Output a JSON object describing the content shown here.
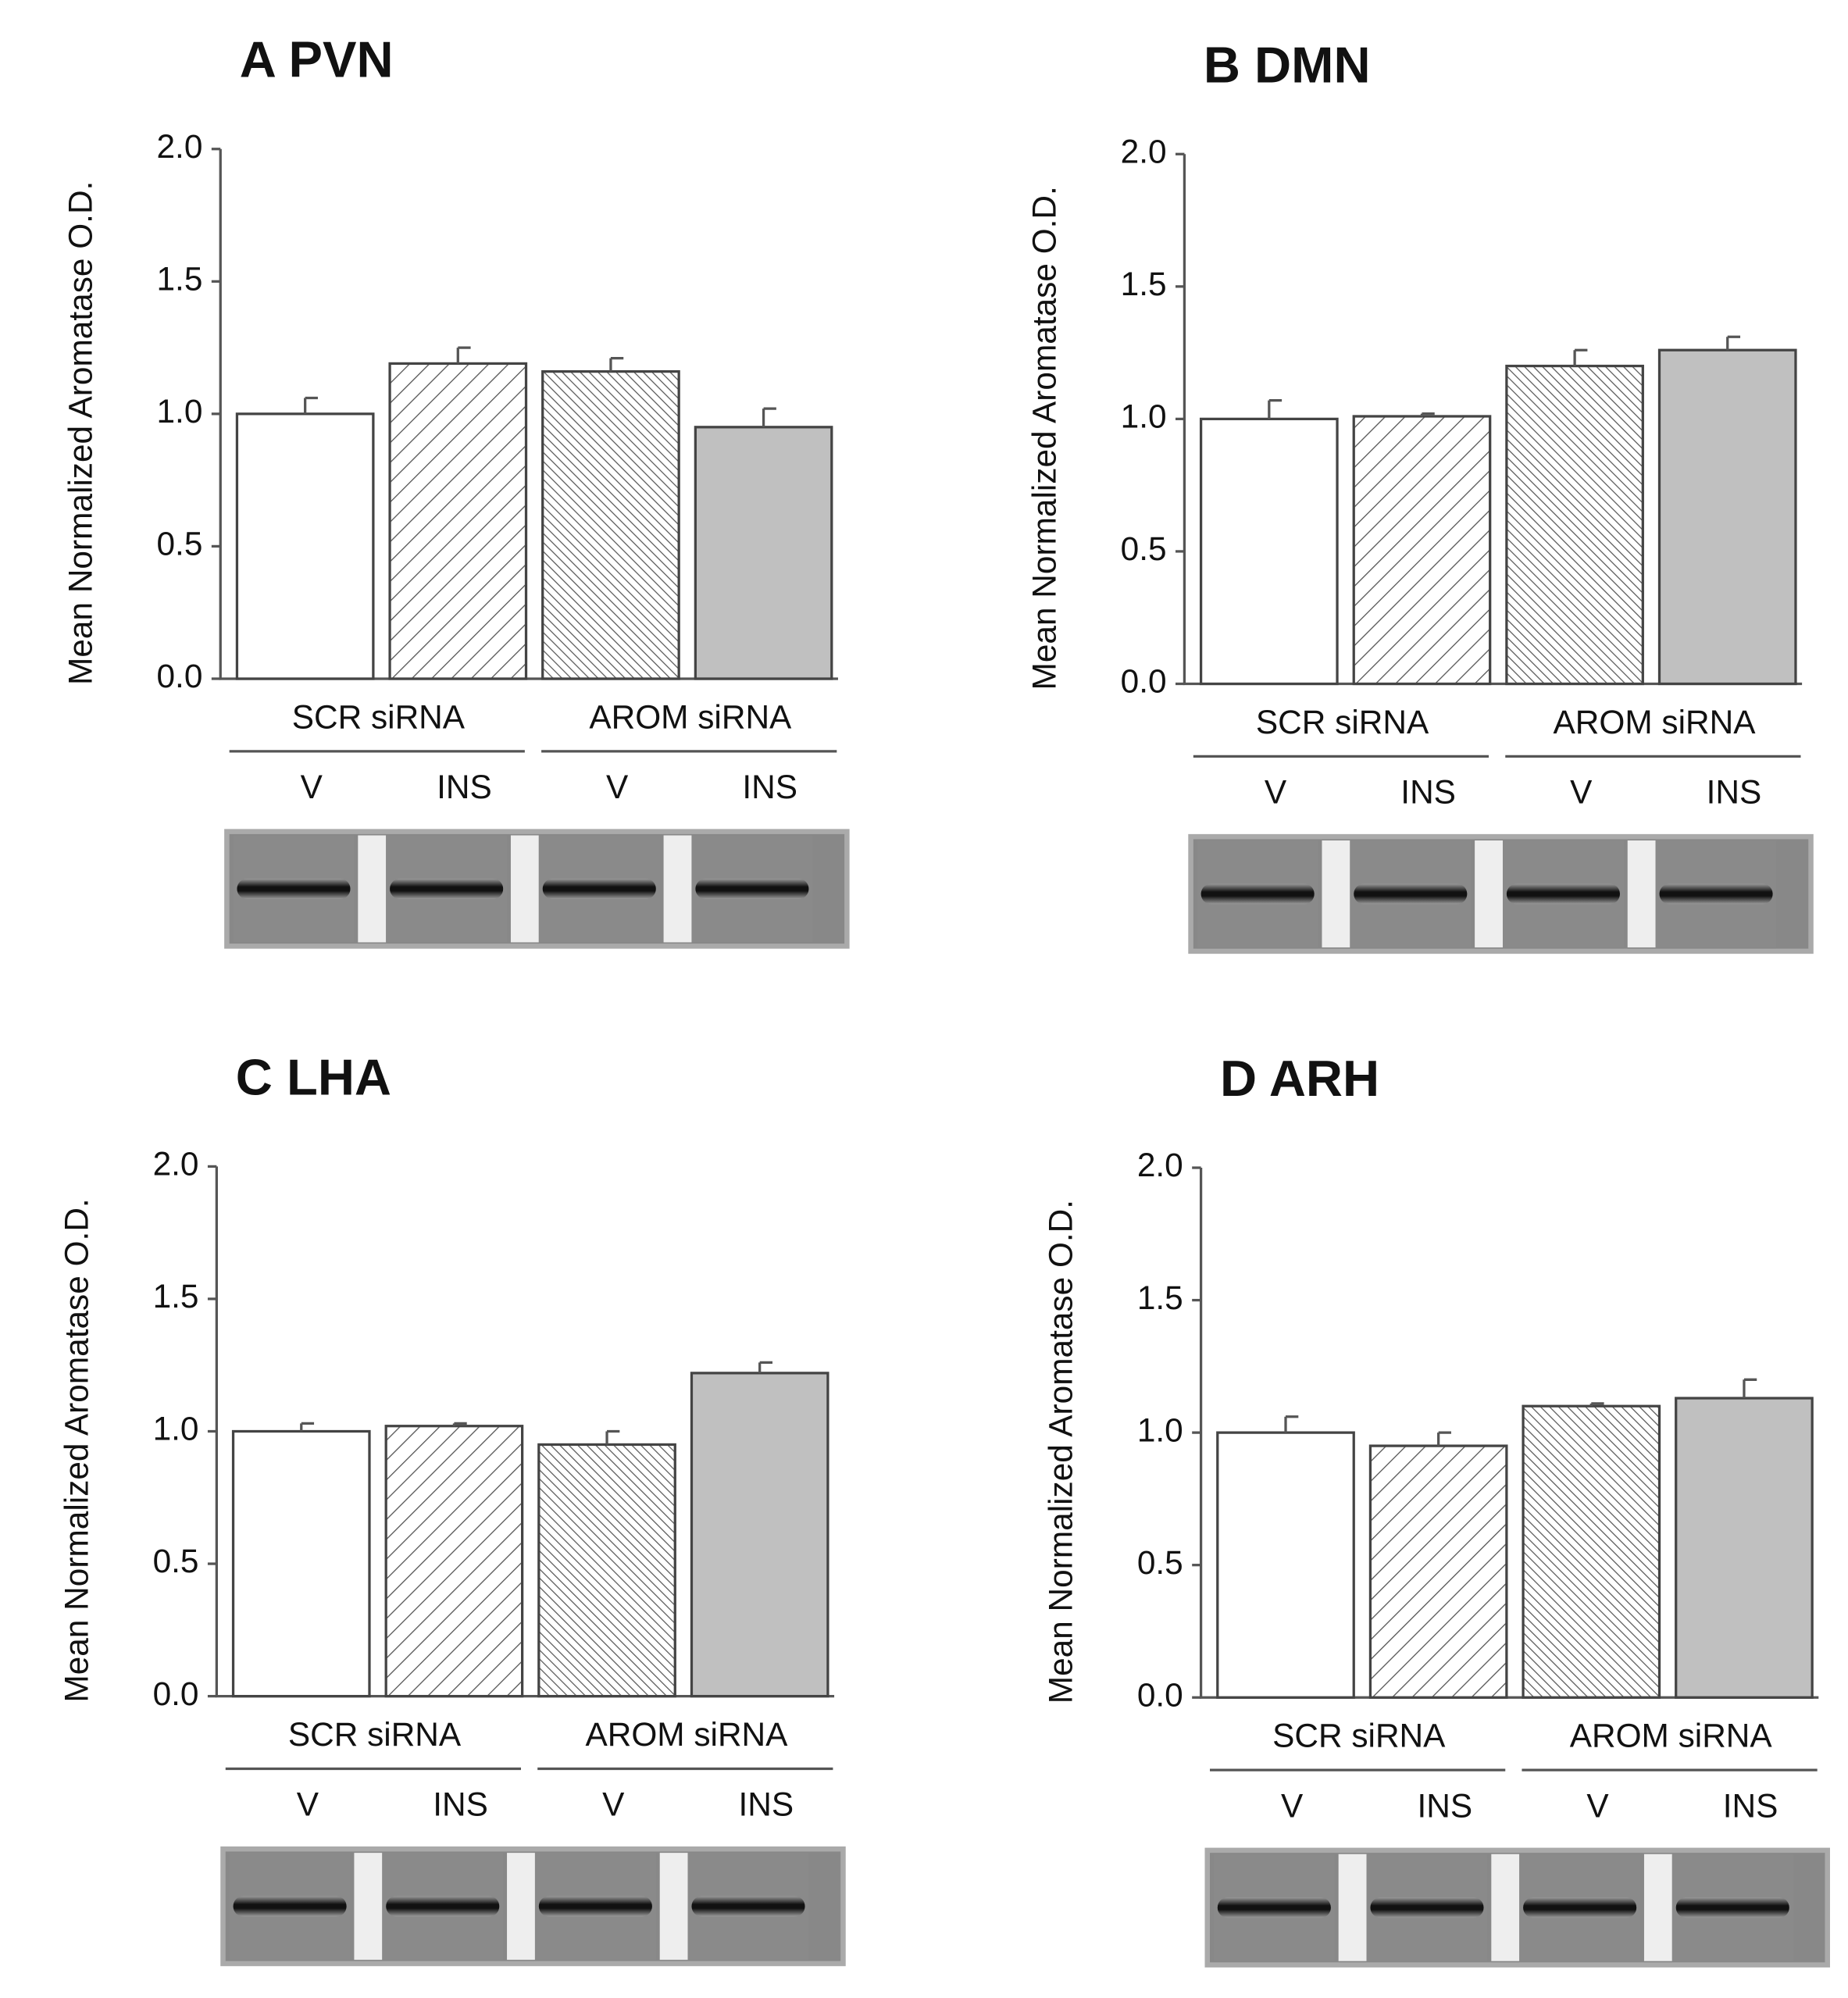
{
  "chart_data": [
    {
      "type": "bar",
      "title": "A  PVN",
      "y_label": "Mean Normalized Aromatase O.D.",
      "categories": [
        "V",
        "INS",
        "V",
        "INS"
      ],
      "groups": [
        "SCR siRNA",
        "AROM siRNA"
      ],
      "values": [
        1.0,
        1.19,
        1.16,
        0.95
      ],
      "errors": [
        0.06,
        0.06,
        0.05,
        0.07
      ],
      "ylim": [
        0,
        2
      ],
      "yticks": [
        {
          "value": 0,
          "label": "0.0"
        },
        {
          "value": 0.5,
          "label": "0.5"
        },
        {
          "value": 1,
          "label": "1.0"
        },
        {
          "value": 1.5,
          "label": "1.5"
        },
        {
          "value": 2,
          "label": "2.0"
        }
      ]
    },
    {
      "type": "bar",
      "title": "B  DMN",
      "y_label": "Mean Normalized Aromatase O.D.",
      "categories": [
        "V",
        "INS",
        "V",
        "INS"
      ],
      "groups": [
        "SCR siRNA",
        "AROM siRNA"
      ],
      "values": [
        1.0,
        1.01,
        1.2,
        1.26
      ],
      "errors": [
        0.07,
        0.01,
        0.06,
        0.05
      ],
      "ylim": [
        0,
        2
      ],
      "yticks": [
        {
          "value": 0,
          "label": "0.0"
        },
        {
          "value": 0.5,
          "label": "0.5"
        },
        {
          "value": 1,
          "label": "1.0"
        },
        {
          "value": 1.5,
          "label": "1.5"
        },
        {
          "value": 2,
          "label": "2.0"
        }
      ]
    },
    {
      "type": "bar",
      "title": "C  LHA",
      "y_label": "Mean Normalized Aromatase O.D.",
      "categories": [
        "V",
        "INS",
        "V",
        "INS"
      ],
      "groups": [
        "SCR siRNA",
        "AROM siRNA"
      ],
      "values": [
        1.0,
        1.02,
        0.95,
        1.22
      ],
      "errors": [
        0.03,
        0.01,
        0.05,
        0.04
      ],
      "ylim": [
        0,
        2
      ],
      "yticks": [
        {
          "value": 0,
          "label": "0.0"
        },
        {
          "value": 0.5,
          "label": "0.5"
        },
        {
          "value": 1,
          "label": "1.0"
        },
        {
          "value": 1.5,
          "label": "1.5"
        },
        {
          "value": 2,
          "label": "2.0"
        }
      ]
    },
    {
      "type": "bar",
      "title": "D  ARH",
      "y_label": "Mean Normalized Aromatase O.D.",
      "categories": [
        "V",
        "INS",
        "V",
        "INS"
      ],
      "groups": [
        "SCR siRNA",
        "AROM siRNA"
      ],
      "values": [
        1.0,
        0.95,
        1.1,
        1.13
      ],
      "errors": [
        0.06,
        0.05,
        0.01,
        0.07
      ],
      "ylim": [
        0,
        2
      ],
      "yticks": [
        {
          "value": 0,
          "label": "0.0"
        },
        {
          "value": 0.5,
          "label": "0.5"
        },
        {
          "value": 1,
          "label": "1.0"
        },
        {
          "value": 1.5,
          "label": "1.5"
        },
        {
          "value": 2,
          "label": "2.0"
        }
      ]
    }
  ]
}
